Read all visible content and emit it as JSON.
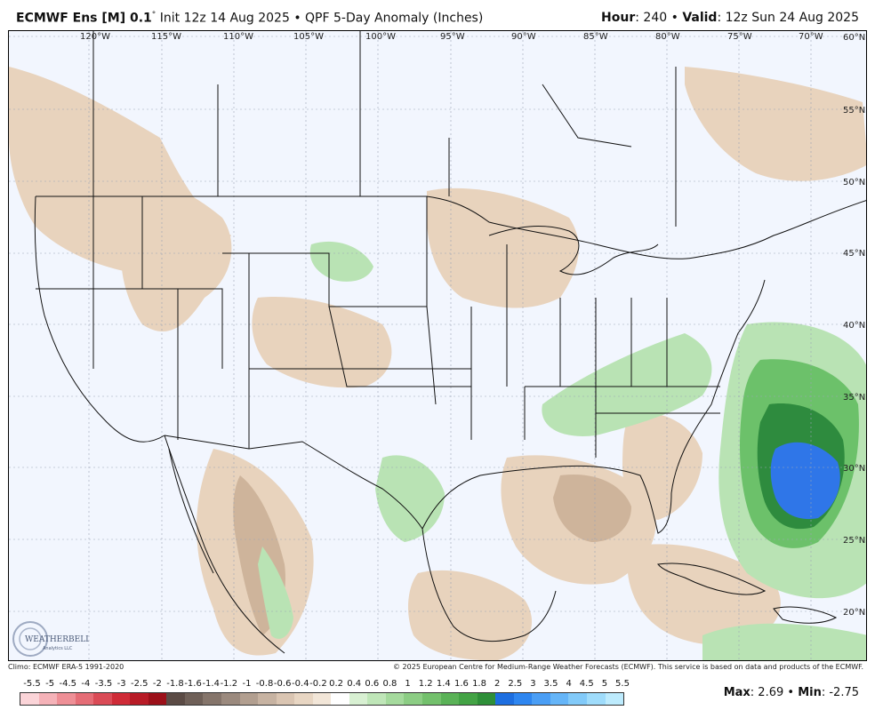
{
  "header": {
    "model": "ECMWF Ens [M] 0.1",
    "degree": "°",
    "init": " Init 12z 14 Aug 2025 • QPF 5-Day Anomaly (Inches)",
    "hour_label": "Hour",
    "hour_value": ": 240 • ",
    "valid_label": "Valid",
    "valid_value": ": 12z Sun 24 Aug 2025"
  },
  "map": {
    "lon_labels": [
      "120°W",
      "115°W",
      "110°W",
      "105°W",
      "100°W",
      "95°W",
      "90°W",
      "85°W",
      "80°W",
      "75°W",
      "70°W"
    ],
    "lat_labels": [
      "60°N",
      "55°N",
      "50°N",
      "45°N",
      "40°N",
      "35°N",
      "30°N",
      "25°N",
      "20°N"
    ],
    "colors": {
      "background": "#f2f6fe",
      "dry": "#e8d3bd",
      "dry_dark": "#b89b80",
      "wet_light": "#b9e3b4",
      "wet_mid": "#6cc16a",
      "wet_dark": "#2e8b3e",
      "heavy": "#2f76e8"
    },
    "logo_text": "WEATHERBELL",
    "logo_sub": "Analytics LLC"
  },
  "footer": {
    "climo": "Climo: ECMWF ERA-5 1991-2020",
    "copyright": "© 2025 European Centre for Medium-Range Weather Forecasts (ECMWF). This service is based on data and products of the ECMWF."
  },
  "legend": {
    "ticks": [
      "-5.5",
      "-5",
      "-4.5",
      "-4",
      "-3.5",
      "-3",
      "-2.5",
      "-2",
      "-1.8",
      "-1.6",
      "-1.4",
      "-1.2",
      "-1",
      "-0.8",
      "-0.6",
      "-0.4",
      "-0.2",
      "0.2",
      "0.4",
      "0.6",
      "0.8",
      "1",
      "1.2",
      "1.4",
      "1.6",
      "1.8",
      "2",
      "2.5",
      "3",
      "3.5",
      "4",
      "4.5",
      "5",
      "5.5"
    ],
    "colors": [
      "#fbd4d8",
      "#f5b2b8",
      "#ee8f96",
      "#e56d76",
      "#da4b56",
      "#cf2b37",
      "#b81b26",
      "#9c1019",
      "#5b4b45",
      "#6f6058",
      "#85756b",
      "#9b8a7e",
      "#b29f90",
      "#c7b3a2",
      "#dac5b2",
      "#e8d6c3",
      "#f2e6d8",
      "#ffffff",
      "#d8f0d2",
      "#bfe6b8",
      "#a5da9d",
      "#8ccd84",
      "#73c06c",
      "#5ab257",
      "#43a345",
      "#2e8f38",
      "#1d6ee0",
      "#2e86f0",
      "#4a9ef5",
      "#65b5f8",
      "#82caf9",
      "#9fdcfb",
      "#bdebfd"
    ],
    "max_label": "Max",
    "max_value": ": 2.69 • ",
    "min_label": "Min",
    "min_value": ": -2.75"
  }
}
